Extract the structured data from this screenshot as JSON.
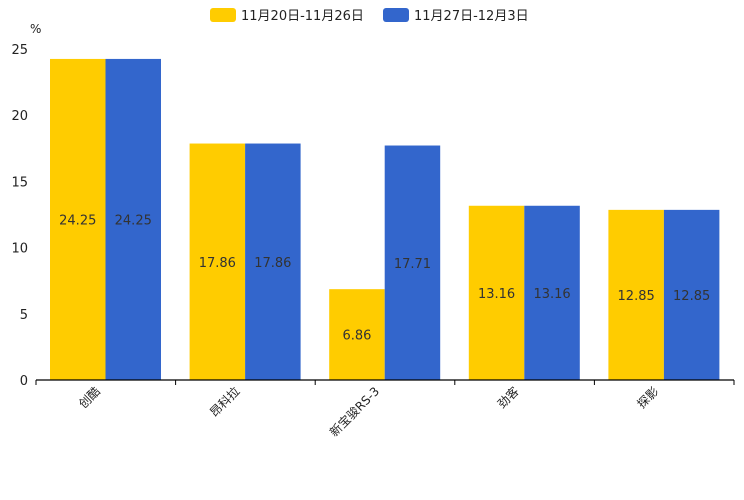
{
  "chart_data": {
    "type": "bar",
    "ylabel": "%",
    "ylim": [
      0,
      25
    ],
    "yticks": [
      0,
      5,
      10,
      15,
      20,
      25
    ],
    "categories": [
      "创酷",
      "昂科拉",
      "新宝骏RS-3",
      "劲客",
      "探影"
    ],
    "legend_position": "top",
    "series": [
      {
        "name": "11月20日-11月26日",
        "color": "#FFCC00",
        "values": [
          24.25,
          17.86,
          6.86,
          13.16,
          12.85
        ]
      },
      {
        "name": "11月27日-12月3日",
        "color": "#3366CC",
        "values": [
          24.25,
          17.86,
          17.71,
          13.16,
          12.85
        ]
      }
    ]
  }
}
